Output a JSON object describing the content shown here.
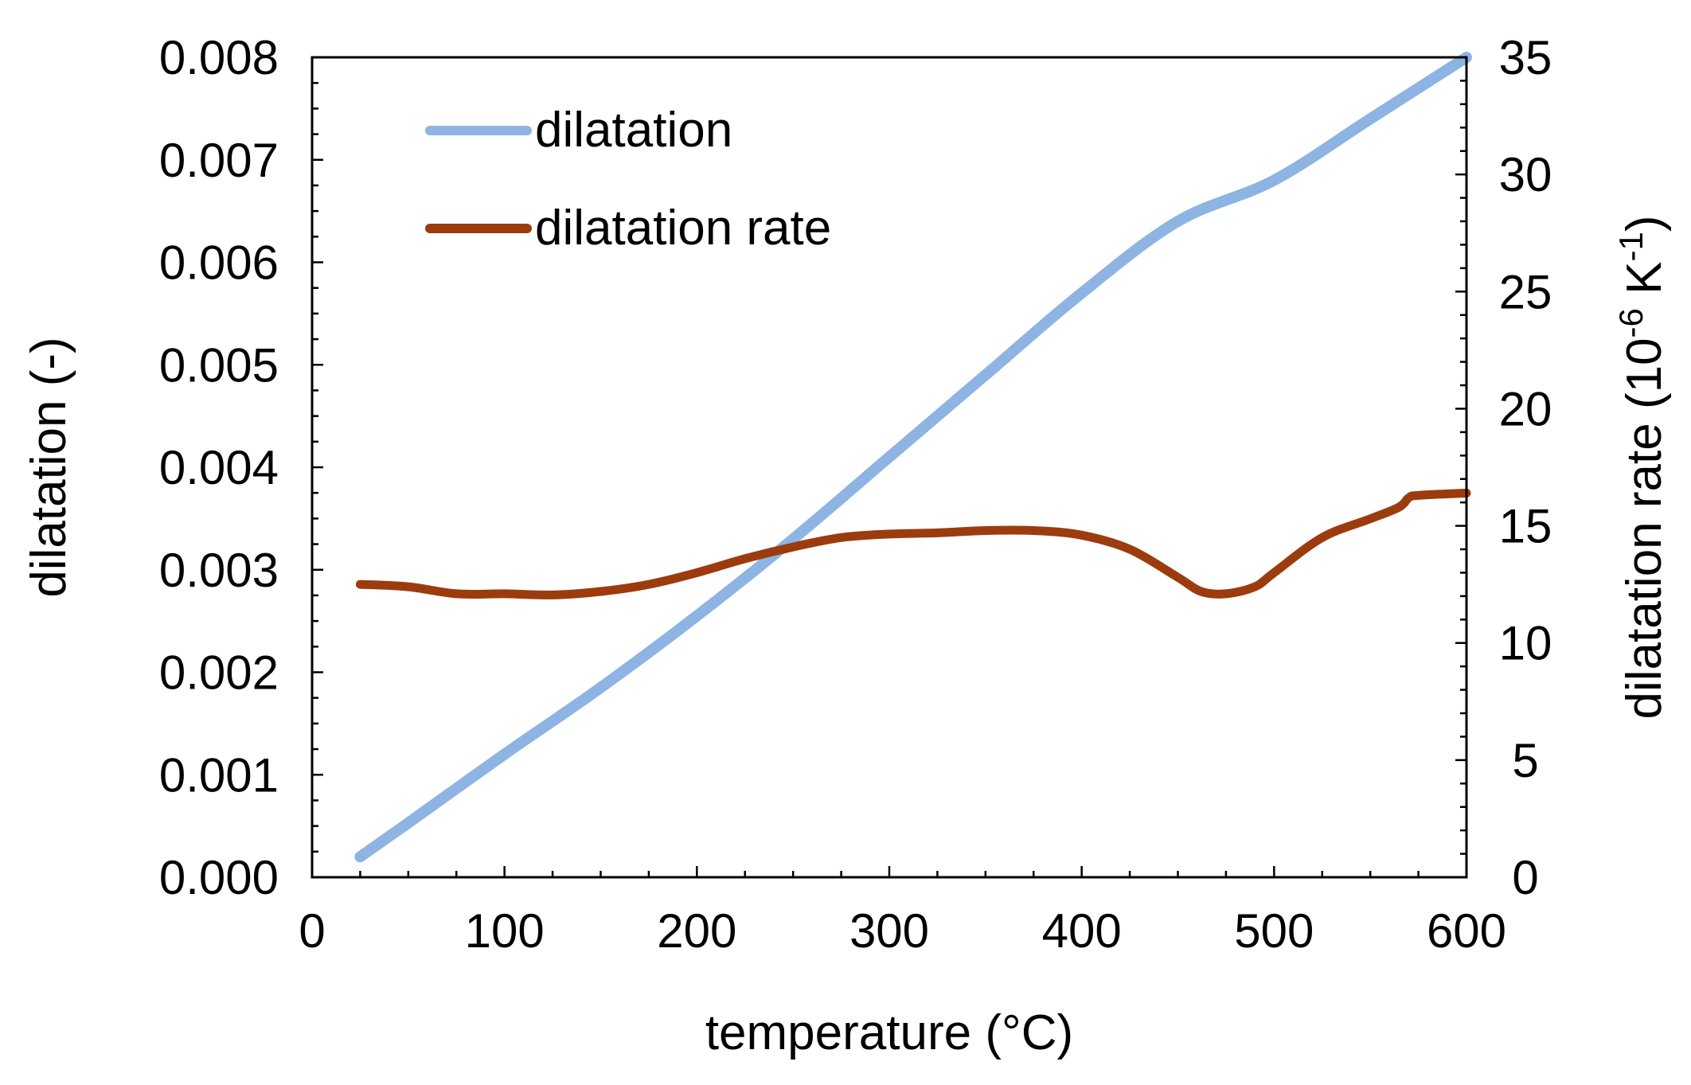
{
  "chart_data": {
    "type": "line",
    "title": "",
    "xlabel": "temperature (°C)",
    "ylabel": "dilatation (-)",
    "y2label": {
      "base": "dilatation rate (10",
      "exp1": "-6",
      "mid": " K",
      "exp2": "-1",
      "end": ")"
    },
    "xlim": [
      0,
      600
    ],
    "ylim": [
      0,
      0.008
    ],
    "y2lim": [
      0,
      35
    ],
    "xticks": [
      0,
      100,
      200,
      300,
      400,
      500,
      600
    ],
    "xtick_labels": [
      "0",
      "100",
      "200",
      "300",
      "400",
      "500",
      "600"
    ],
    "yticks": [
      0,
      0.001,
      0.002,
      0.003,
      0.004,
      0.005,
      0.006,
      0.007,
      0.008
    ],
    "ytick_labels": [
      "0.000",
      "0.001",
      "0.002",
      "0.003",
      "0.004",
      "0.005",
      "0.006",
      "0.007",
      "0.008"
    ],
    "y2ticks": [
      0,
      5,
      10,
      15,
      20,
      25,
      30,
      35
    ],
    "y2tick_labels": [
      "0",
      "5",
      "10",
      "15",
      "20",
      "25",
      "30",
      "35"
    ],
    "grid": false,
    "legend_position": "top-left",
    "series": [
      {
        "name": "dilatation",
        "axis": "left",
        "color": "#8db4e2",
        "x": [
          25,
          50,
          100,
          150,
          200,
          250,
          300,
          350,
          400,
          450,
          500,
          550,
          600
        ],
        "y": [
          0.0002,
          0.00053,
          0.0012,
          0.00185,
          0.00255,
          0.0033,
          0.0041,
          0.0049,
          0.0057,
          0.0064,
          0.0068,
          0.0074,
          0.008
        ]
      },
      {
        "name": "dilatation rate",
        "axis": "right",
        "color": "#9c3c0e",
        "x": [
          25,
          50,
          75,
          100,
          125,
          150,
          175,
          200,
          225,
          250,
          275,
          300,
          325,
          350,
          375,
          400,
          425,
          450,
          462,
          475,
          490,
          500,
          525,
          550,
          565,
          570,
          575,
          600
        ],
        "y": [
          12.5,
          12.4,
          12.1,
          12.1,
          12.05,
          12.2,
          12.5,
          13.0,
          13.6,
          14.1,
          14.5,
          14.65,
          14.7,
          14.8,
          14.8,
          14.6,
          14.0,
          12.8,
          12.2,
          12.1,
          12.4,
          13.0,
          14.5,
          15.3,
          15.8,
          16.2,
          16.3,
          16.4
        ]
      }
    ]
  }
}
